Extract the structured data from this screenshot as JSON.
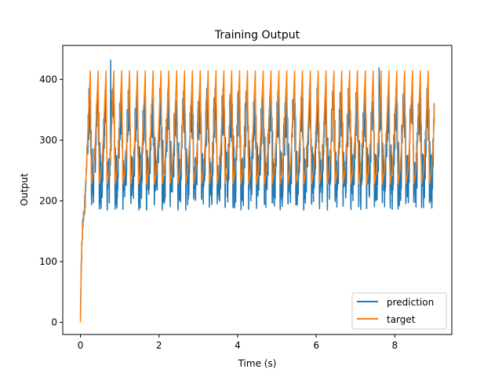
{
  "chart_data": {
    "type": "line",
    "title": "Training Output",
    "xlabel": "Time (s)",
    "ylabel": "Output",
    "xlim": [
      -0.45,
      9.45
    ],
    "ylim": [
      -20,
      456
    ],
    "xticks": [
      0,
      2,
      4,
      6,
      8
    ],
    "yticks": [
      0,
      100,
      200,
      300,
      400
    ],
    "grid": false,
    "legend_position": "lower right",
    "series": [
      {
        "name": "prediction",
        "color": "#1f77b4",
        "summary": {
          "x_range": [
            0,
            9.0
          ],
          "initial_rise": [
            [
              0.0,
              10
            ],
            [
              0.02,
              95
            ],
            [
              0.06,
              165
            ],
            [
              0.12,
              200
            ],
            [
              0.18,
              300
            ]
          ],
          "period_s": 0.2,
          "typical_max": 360,
          "typical_min": 195,
          "peak": {
            "x": 0.77,
            "y": 432
          },
          "second_peak": {
            "x": 7.6,
            "y": 419
          },
          "end_y": 325
        }
      },
      {
        "name": "target",
        "color": "#ff7f0e",
        "summary": {
          "x_range": [
            0,
            9.0
          ],
          "initial_rise": [
            [
              0.0,
              0
            ],
            [
              0.02,
              95
            ],
            [
              0.06,
              160
            ],
            [
              0.12,
              200
            ],
            [
              0.18,
              300
            ]
          ],
          "period_s": 0.2,
          "max": 414,
          "min": 228,
          "end_y": 360
        }
      }
    ]
  }
}
